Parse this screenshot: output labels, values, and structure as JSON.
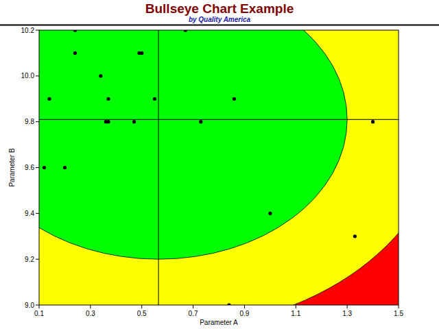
{
  "chart_data": {
    "type": "scatter",
    "title": "Bullseye Chart Example",
    "subtitle": "by Quality America",
    "x_label": "Parameter A",
    "y_label": "Parameter B",
    "x": [
      0.12,
      0.14,
      0.2,
      0.24,
      0.24,
      0.34,
      0.36,
      0.37,
      0.37,
      0.47,
      0.49,
      0.5,
      0.55,
      0.67,
      0.73,
      0.86,
      1.0,
      1.33,
      1.4,
      0.84
    ],
    "values": [
      9.6,
      9.9,
      9.6,
      10.2,
      10.1,
      10.0,
      9.8,
      9.8,
      9.9,
      9.8,
      10.1,
      10.1,
      9.9,
      10.2,
      9.8,
      9.9,
      9.4,
      9.3,
      9.8,
      9.0
    ],
    "color": "#000000",
    "marker": "circle",
    "target": [
      0.565,
      9.81
    ],
    "zones": [
      {
        "color": "#ff0000"
      },
      {
        "color": "#ffff00",
        "rx": 1.11,
        "ry": 0.92
      },
      {
        "color": "#00ff00",
        "rx": 0.735,
        "ry": 0.61
      }
    ],
    "xlim": [
      0.1,
      1.5
    ],
    "xticks": [
      0.1,
      0.3,
      0.5,
      0.7,
      0.9,
      1.1,
      1.3,
      1.5
    ],
    "ylim": [
      9.0,
      10.2
    ],
    "yticks": [
      {
        "value": 9.0,
        "label": "9.0"
      },
      9.2,
      9.4,
      9.6,
      9.8,
      {
        "value": 10.0,
        "label": "10.0"
      },
      10.2
    ]
  }
}
